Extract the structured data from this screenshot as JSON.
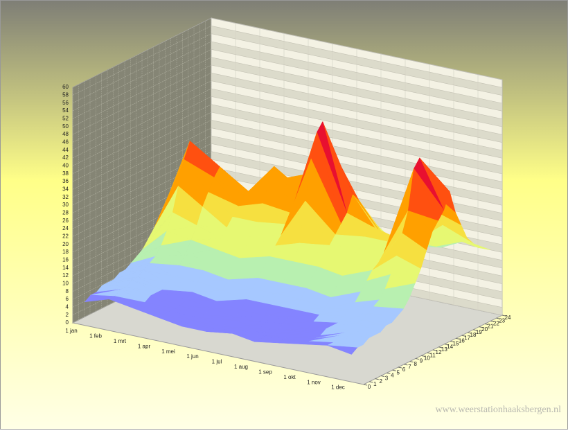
{
  "chart_data": {
    "type": "surface3d",
    "annotation": "www.weerstationhaaksbergen.nl",
    "categories": [
      "1 jan",
      "1 feb",
      "1 mrt",
      "1 apr",
      "1 mei",
      "1 jun",
      "1 jul",
      "1 aug",
      "1 sep",
      "1 okt",
      "1 nov",
      "1 dec"
    ],
    "y": [
      0,
      1,
      2,
      3,
      4,
      5,
      6,
      7,
      8,
      9,
      10,
      11,
      12,
      13,
      14,
      15,
      16,
      17,
      18,
      19,
      20,
      21,
      22,
      23,
      24
    ],
    "ylim": [
      0,
      24
    ],
    "yticks": [
      0,
      1,
      2,
      3,
      4,
      5,
      6,
      7,
      8,
      9,
      10,
      11,
      12,
      13,
      14,
      15,
      16,
      17,
      18,
      19,
      20,
      21,
      22,
      23,
      24
    ],
    "zlim": [
      0,
      60
    ],
    "zticks": [
      0,
      2,
      4,
      6,
      8,
      10,
      12,
      14,
      16,
      18,
      20,
      22,
      24,
      26,
      28,
      30,
      32,
      34,
      36,
      38,
      40,
      42,
      44,
      46,
      48,
      50,
      52,
      54,
      56,
      58,
      60
    ],
    "grid": true,
    "colorscale": [
      [
        0,
        "#8484ff"
      ],
      [
        8,
        "#a6c8ff"
      ],
      [
        12,
        "#b8f0b0"
      ],
      [
        16,
        "#e6f872"
      ],
      [
        22,
        "#f6e040"
      ],
      [
        26,
        "#ffa000"
      ],
      [
        32,
        "#ff5010"
      ],
      [
        38,
        "#e81030"
      ],
      [
        46,
        "#c000a0"
      ]
    ],
    "values": [
      [
        6,
        8,
        7,
        6,
        5,
        5,
        6,
        5,
        6,
        7,
        8,
        7
      ],
      [
        7,
        8,
        7,
        6,
        5,
        5,
        5,
        5,
        6,
        7,
        8,
        8
      ],
      [
        7,
        9,
        7,
        6,
        5,
        4,
        5,
        5,
        6,
        7,
        9,
        8
      ],
      [
        8,
        9,
        8,
        6,
        5,
        4,
        5,
        5,
        6,
        7,
        9,
        9
      ],
      [
        8,
        10,
        8,
        6,
        5,
        5,
        5,
        5,
        6,
        8,
        9,
        9
      ],
      [
        8,
        10,
        8,
        7,
        6,
        5,
        5,
        6,
        6,
        8,
        10,
        9
      ],
      [
        9,
        11,
        9,
        8,
        7,
        6,
        6,
        7,
        7,
        8,
        10,
        10
      ],
      [
        9,
        12,
        10,
        10,
        9,
        8,
        8,
        8,
        8,
        9,
        11,
        10
      ],
      [
        10,
        13,
        12,
        12,
        11,
        10,
        10,
        10,
        9,
        10,
        12,
        11
      ],
      [
        11,
        15,
        14,
        14,
        13,
        12,
        12,
        12,
        11,
        11,
        13,
        12
      ],
      [
        12,
        18,
        17,
        16,
        15,
        14,
        14,
        14,
        13,
        13,
        15,
        14
      ],
      [
        14,
        22,
        20,
        18,
        17,
        16,
        16,
        16,
        15,
        15,
        18,
        17
      ],
      [
        16,
        28,
        24,
        20,
        19,
        18,
        20,
        18,
        17,
        17,
        22,
        20
      ],
      [
        18,
        34,
        27,
        22,
        22,
        20,
        30,
        20,
        19,
        18,
        27,
        24
      ],
      [
        20,
        38,
        30,
        24,
        26,
        22,
        40,
        22,
        20,
        20,
        32,
        28
      ],
      [
        22,
        36,
        32,
        26,
        30,
        24,
        46,
        24,
        22,
        22,
        42,
        30
      ],
      [
        20,
        33,
        30,
        25,
        34,
        26,
        48,
        26,
        24,
        22,
        44,
        32
      ],
      [
        18,
        30,
        27,
        24,
        30,
        28,
        42,
        30,
        22,
        21,
        40,
        36
      ],
      [
        16,
        26,
        24,
        22,
        26,
        32,
        36,
        28,
        20,
        20,
        34,
        30
      ],
      [
        15,
        22,
        20,
        20,
        22,
        26,
        30,
        24,
        18,
        19,
        28,
        26
      ],
      [
        14,
        20,
        18,
        18,
        18,
        22,
        26,
        20,
        17,
        18,
        24,
        22
      ],
      [
        13,
        18,
        16,
        15,
        16,
        18,
        22,
        18,
        16,
        17,
        21,
        20
      ],
      [
        12,
        16,
        15,
        14,
        14,
        15,
        18,
        16,
        15,
        16,
        19,
        18
      ],
      [
        12,
        15,
        14,
        13,
        12,
        13,
        15,
        14,
        14,
        15,
        18,
        17
      ],
      [
        11,
        14,
        13,
        12,
        11,
        12,
        13,
        13,
        13,
        14,
        17,
        16
      ]
    ]
  }
}
